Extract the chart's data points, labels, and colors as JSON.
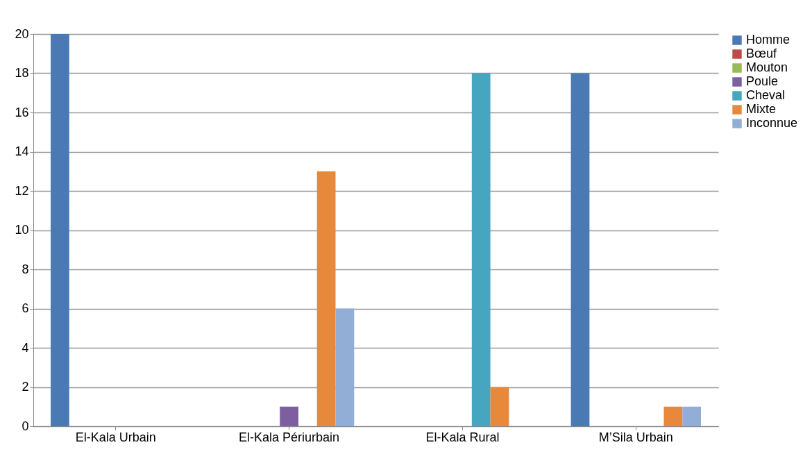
{
  "chart_data": {
    "type": "bar",
    "categories": [
      "El-Kala Urbain",
      "El-Kala Périurbain",
      "El-Kala Rural",
      "M’Sila Urbain"
    ],
    "series": [
      {
        "name": "Homme",
        "color": "#4a7ab4",
        "values": [
          20,
          0,
          0,
          18
        ]
      },
      {
        "name": "Bœuf",
        "color": "#be4b48",
        "values": [
          0,
          0,
          0,
          0
        ]
      },
      {
        "name": "Mouton",
        "color": "#98b954",
        "values": [
          0,
          0,
          0,
          0
        ]
      },
      {
        "name": "Poule",
        "color": "#7d5fa0",
        "values": [
          0,
          1,
          0,
          0
        ]
      },
      {
        "name": "Cheval",
        "color": "#46a5bf",
        "values": [
          0,
          0,
          18,
          0
        ]
      },
      {
        "name": "Mixte",
        "color": "#e8883b",
        "values": [
          0,
          13,
          2,
          1
        ]
      },
      {
        "name": "Inconnue",
        "color": "#93aed6",
        "values": [
          0,
          6,
          0,
          1
        ]
      }
    ],
    "ylim": [
      0,
      20
    ],
    "yticks": [
      0,
      2,
      4,
      6,
      8,
      10,
      12,
      14,
      16,
      18,
      20
    ],
    "grid": "y",
    "legend": "right"
  }
}
